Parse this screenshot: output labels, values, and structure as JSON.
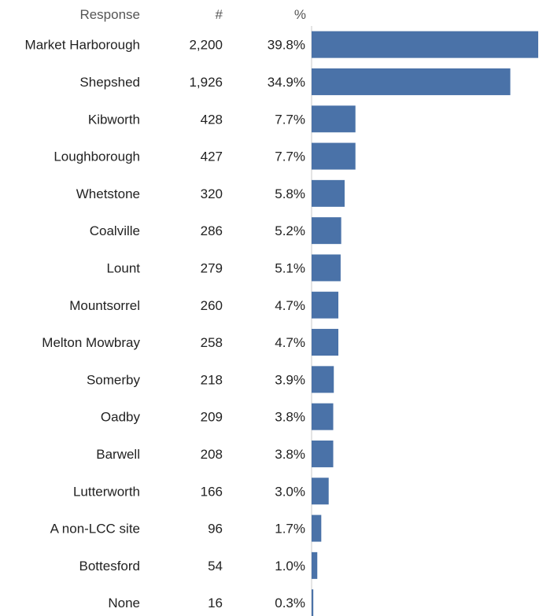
{
  "headers": {
    "response": "Response",
    "count": "#",
    "percent": "%"
  },
  "colors": {
    "bar": "#4a72a8"
  },
  "chart_data": {
    "type": "bar",
    "orientation": "horizontal",
    "categories": [
      "Market Harborough",
      "Shepshed",
      "Kibworth",
      "Loughborough",
      "Whetstone",
      "Coalville",
      "Lount",
      "Mountsorrel",
      "Melton Mowbray",
      "Somerby",
      "Oadby",
      "Barwell",
      "Lutterworth",
      "A non-LCC site",
      "Bottesford",
      "None"
    ],
    "counts": [
      "2,200",
      "1,926",
      "428",
      "427",
      "320",
      "286",
      "279",
      "260",
      "258",
      "218",
      "209",
      "208",
      "166",
      "96",
      "54",
      "16"
    ],
    "percent_labels": [
      "39.8%",
      "34.9%",
      "7.7%",
      "7.7%",
      "5.8%",
      "5.2%",
      "5.1%",
      "4.7%",
      "4.7%",
      "3.9%",
      "3.8%",
      "3.8%",
      "3.0%",
      "1.7%",
      "1.0%",
      "0.3%"
    ],
    "values": [
      39.8,
      34.9,
      7.7,
      7.7,
      5.8,
      5.2,
      5.1,
      4.7,
      4.7,
      3.9,
      3.8,
      3.8,
      3.0,
      1.7,
      1.0,
      0.3
    ],
    "xlim": [
      0,
      39.8
    ],
    "grid": false,
    "legend": "none"
  }
}
